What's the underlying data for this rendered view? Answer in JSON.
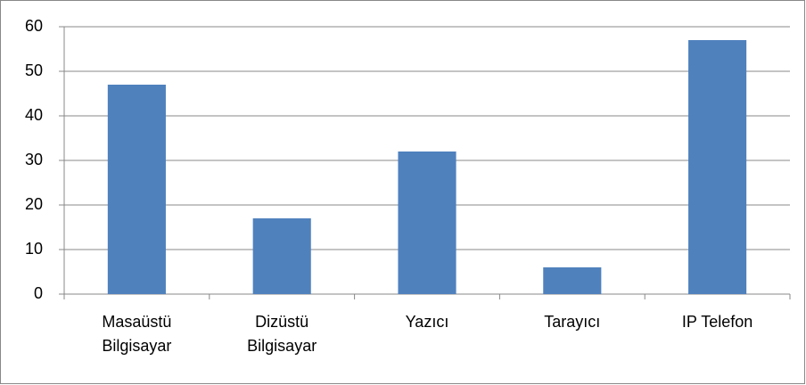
{
  "chart_data": {
    "type": "bar",
    "categories": [
      "Masaüstü Bilgisayar",
      "Dizüstü Bilgisayar",
      "Yazıcı",
      "Tarayıcı",
      "IP Telefon"
    ],
    "values": [
      47,
      17,
      32,
      6,
      57
    ],
    "color": "#4f81bd",
    "ylim": [
      0,
      60
    ],
    "yticks": [
      0,
      10,
      20,
      30,
      40,
      50,
      60
    ],
    "grid": true
  }
}
